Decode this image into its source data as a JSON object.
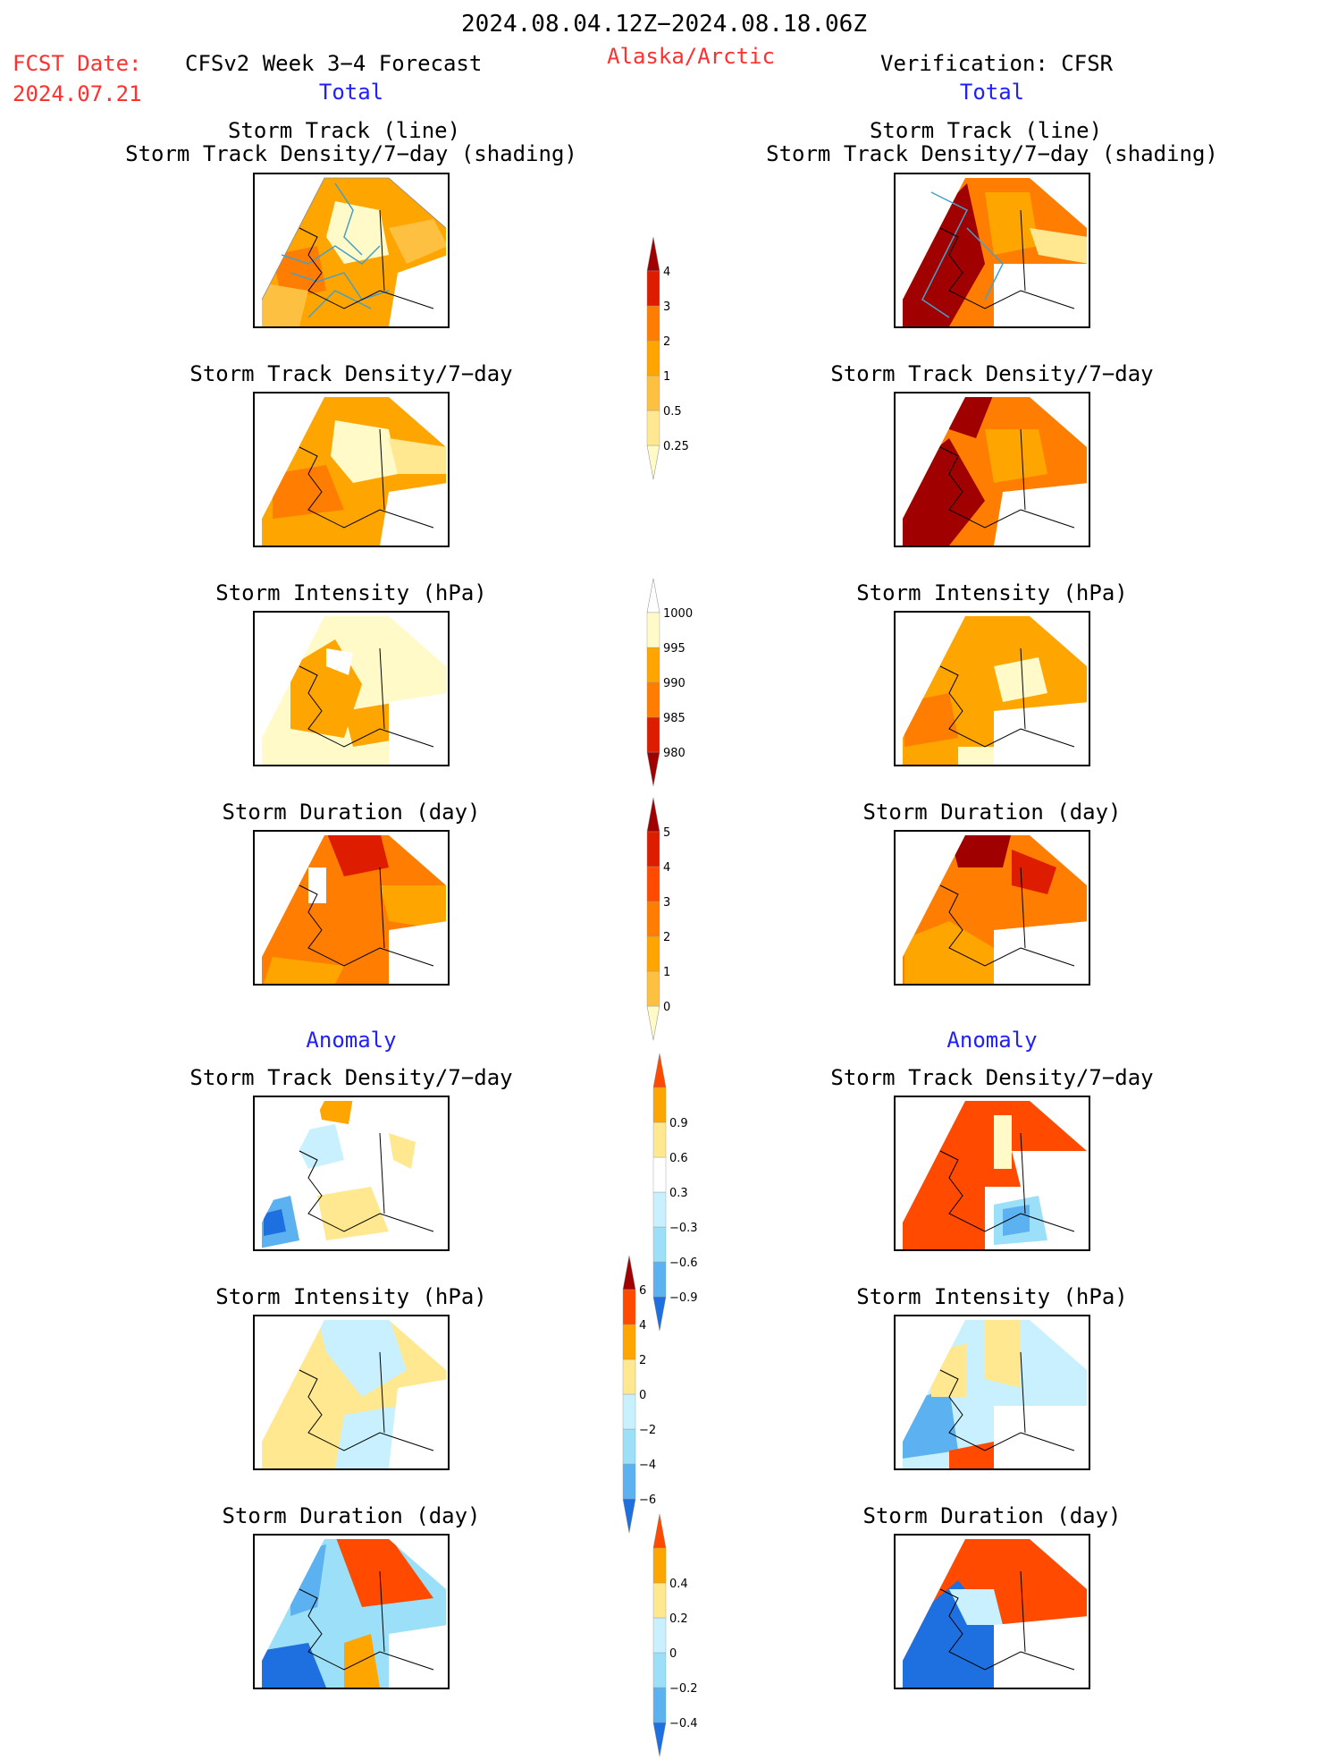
{
  "header": {
    "period": "2024.08.04.12Z−2024.08.18.06Z",
    "fcst_date_label": "FCST Date:",
    "fcst_date_value": "2024.07.21",
    "model": "CFSv2 Week 3−4 Forecast",
    "region": "Alaska/Arctic",
    "verification": "Verification: CFSR"
  },
  "sections": {
    "total_left": "Total",
    "total_right": "Total",
    "anomaly_left": "Anomaly",
    "anomaly_right": "Anomaly"
  },
  "panel_titles": {
    "track_line": "Storm Track (line)",
    "track_density_shading": "Storm Track Density/7−day (shading)",
    "track_density": "Storm Track Density/7−day",
    "intensity": "Storm Intensity (hPa)",
    "duration": "Storm Duration (day)"
  },
  "colors": {
    "c_darkred": "#a00000",
    "c_red": "#dd1c00",
    "c_orangered": "#ff4a00",
    "c_orange": "#ff7d00",
    "c_lightorange": "#ffa500",
    "c_gold": "#fdc040",
    "c_paleyellow": "#ffe890",
    "c_cream": "#fffac8",
    "c_ice": "#c8f0ff",
    "c_lightblue": "#9be0f8",
    "c_sky": "#5cb2f0",
    "c_blue": "#1e6fe0",
    "track_line": "#46a0c8"
  },
  "chart_data": [
    {
      "type": "heatmap",
      "name": "colorbar_total_density",
      "tick_labels": [
        "0.25",
        "0.5",
        "1",
        "2",
        "3",
        "4"
      ],
      "colors": [
        "#fffac8",
        "#ffe890",
        "#fdc040",
        "#ffa500",
        "#ff7d00",
        "#dd1c00",
        "#a00000"
      ],
      "extend": "both"
    },
    {
      "type": "heatmap",
      "name": "colorbar_total_intensity",
      "tick_labels": [
        "980",
        "985",
        "990",
        "995",
        "1000"
      ],
      "colors": [
        "#a00000",
        "#dd1c00",
        "#ff7d00",
        "#ffa500",
        "#fffac8",
        "#ffffff"
      ],
      "extend": "both"
    },
    {
      "type": "heatmap",
      "name": "colorbar_total_duration",
      "tick_labels": [
        "0",
        "1",
        "2",
        "3",
        "4",
        "5"
      ],
      "colors": [
        "#fffac8",
        "#fdc040",
        "#ffa500",
        "#ff7d00",
        "#ff4a00",
        "#dd1c00",
        "#a00000"
      ],
      "extend": "both"
    },
    {
      "type": "heatmap",
      "name": "colorbar_anomaly_density",
      "tick_labels": [
        "−0.9",
        "−0.6",
        "−0.3",
        "0.3",
        "0.6",
        "0.9"
      ],
      "colors": [
        "#1e6fe0",
        "#5cb2f0",
        "#9be0f8",
        "#c8f0ff",
        "#ffffff",
        "#ffe890",
        "#ffa500",
        "#ff4a00"
      ],
      "extend": "both"
    },
    {
      "type": "heatmap",
      "name": "colorbar_anomaly_intensity",
      "tick_labels": [
        "−6",
        "−4",
        "−2",
        "0",
        "2",
        "4",
        "6"
      ],
      "colors": [
        "#1e6fe0",
        "#5cb2f0",
        "#9be0f8",
        "#c8f0ff",
        "#ffe890",
        "#ffa500",
        "#ff4a00",
        "#a00000"
      ],
      "extend": "both"
    },
    {
      "type": "heatmap",
      "name": "colorbar_anomaly_duration",
      "tick_labels": [
        "−0.4",
        "−0.2",
        "0",
        "0.2",
        "0.4"
      ],
      "colors": [
        "#1e6fe0",
        "#5cb2f0",
        "#9be0f8",
        "#c8f0ff",
        "#ffe890",
        "#ffa500",
        "#ff4a00"
      ],
      "extend": "both"
    }
  ]
}
